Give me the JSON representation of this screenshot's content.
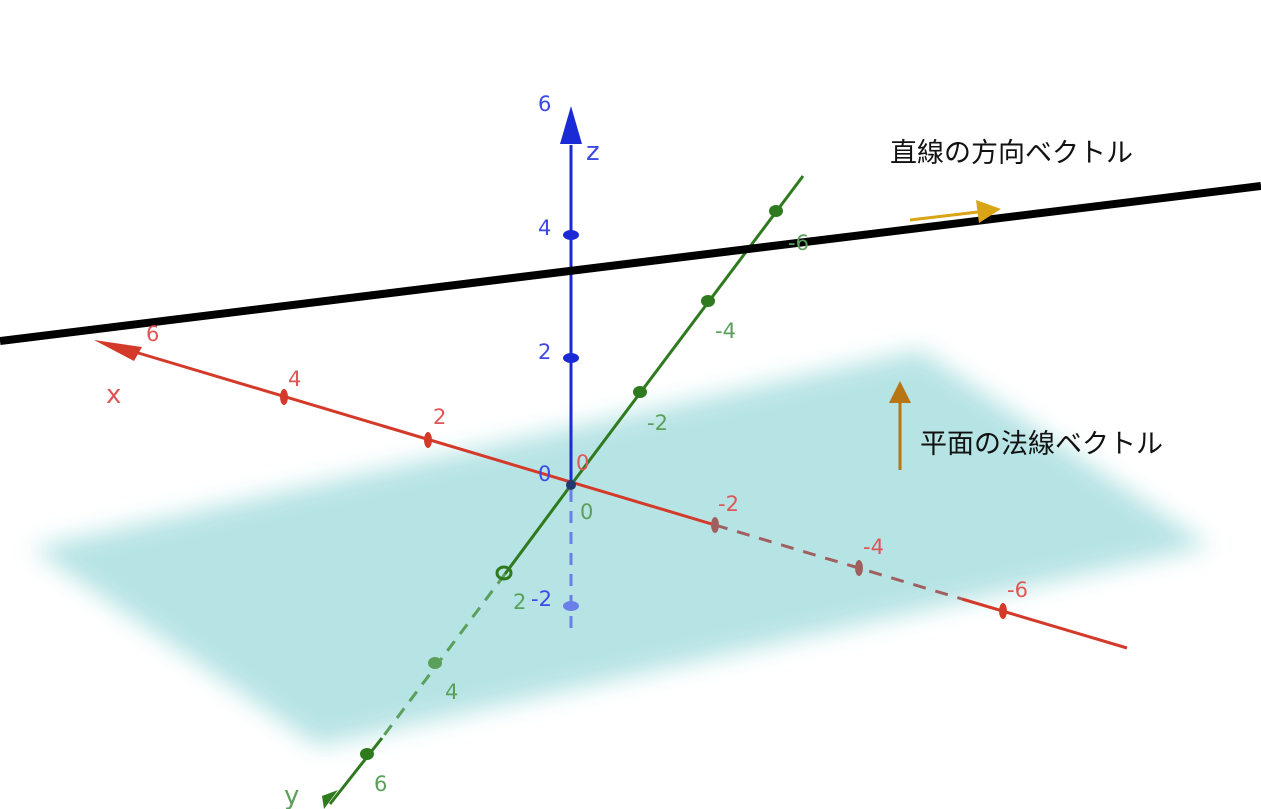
{
  "labels": {
    "line_direction": "直線の方向ベクトル",
    "plane_normal": "平面の法線ベクトル"
  },
  "axes": {
    "x": {
      "name": "x",
      "color": "#d33a2a",
      "ticks": [
        "6",
        "4",
        "2",
        "0",
        "-2",
        "-4",
        "-6"
      ]
    },
    "y": {
      "name": "y",
      "color": "#2f7a1f",
      "ticks": [
        "6",
        "4",
        "2",
        "0",
        "-2",
        "-4",
        "-6"
      ]
    },
    "z": {
      "name": "z",
      "color": "#1a2bd6",
      "ticks": [
        "6",
        "4",
        "2",
        "0",
        "-2"
      ]
    }
  },
  "colors": {
    "plane": "#aadfe0",
    "line": "#000000",
    "direction_vector": "#d9a416",
    "normal_vector": "#b87514"
  }
}
